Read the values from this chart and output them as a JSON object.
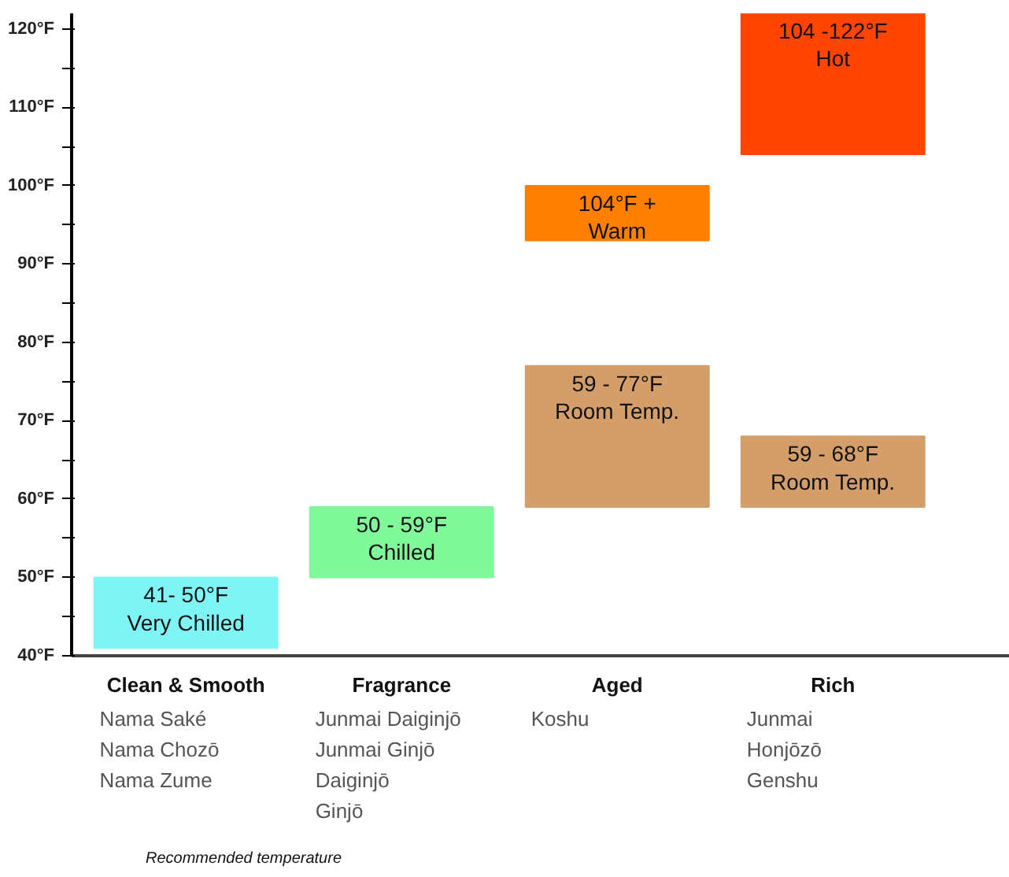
{
  "chart_data": {
    "type": "bar",
    "categories": [
      "Clean & Smooth",
      "Fragrance",
      "Aged",
      "Rich"
    ],
    "series": [
      {
        "colors": [
          "#7ff4f4",
          "#80f99a",
          "#d49e6a",
          "#d49e6a"
        ],
        "base": [
          41,
          50,
          59,
          59
        ],
        "values": [
          9,
          9,
          18,
          9
        ]
      },
      {
        "colors": [
          null,
          null,
          "#ff8000",
          "#ff4500"
        ],
        "base": [
          null,
          null,
          93,
          104
        ],
        "values": [
          null,
          null,
          7,
          18
        ]
      }
    ],
    "ylim": [
      40,
      122
    ],
    "yticks": [
      {
        "value": 40,
        "label": "40°F"
      },
      {
        "value": 45,
        "label": null
      },
      {
        "value": 50,
        "label": "50°F"
      },
      {
        "value": 55,
        "label": null
      },
      {
        "value": 60,
        "label": "60°F"
      },
      {
        "value": 65,
        "label": null
      },
      {
        "value": 70,
        "label": "70°F"
      },
      {
        "value": 75,
        "label": null
      },
      {
        "value": 80,
        "label": "80°F"
      },
      {
        "value": 85,
        "label": null
      },
      {
        "value": 90,
        "label": "90°F"
      },
      {
        "value": 95,
        "label": null
      },
      {
        "value": 100,
        "label": "100°F"
      },
      {
        "value": 105,
        "label": null
      },
      {
        "value": 110,
        "label": "110°F"
      },
      {
        "value": 115,
        "label": null
      },
      {
        "value": 120,
        "label": "120°F"
      }
    ],
    "grid": false,
    "annotations": [
      {
        "text": "41- 50°F\nVery Chilled",
        "x": "Clean & Smooth",
        "y": 50
      },
      {
        "text": "50 - 59°F\nChilled",
        "x": "Fragrance",
        "y": 59
      },
      {
        "text": "59 - 77°F\nRoom Temp.",
        "x": "Aged",
        "y": 77
      },
      {
        "text": "104°F +\nWarm",
        "x": "Aged",
        "y": 100
      },
      {
        "text": "59 - 68°F\nRoom Temp.",
        "x": "Rich",
        "y": 68
      },
      {
        "text": "104 -122°F\nHot",
        "x": "Rich",
        "y": 122
      },
      "Nama Saké\nNama Chozō\nNama Zume",
      "Junmai Daiginjō\nJunmai Ginjō\nDaiginjō\nGinjō",
      "Koshu",
      "Junmai\nHonjōzō\nGenshu",
      "Recommended temperature"
    ]
  }
}
